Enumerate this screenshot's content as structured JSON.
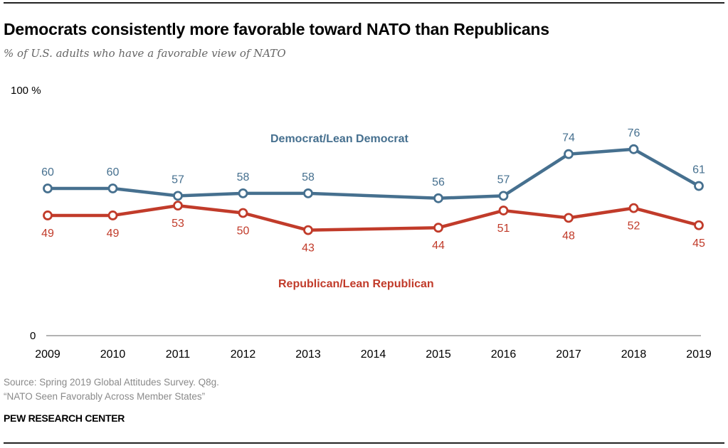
{
  "header": {
    "title": "Democrats consistently more favorable toward NATO than Republicans",
    "subtitle": "% of U.S. adults who have a favorable view of NATO"
  },
  "footer": {
    "source_line1": "Source: Spring 2019 Global Attitudes Survey. Q8g.",
    "source_line2": "“NATO Seen Favorably Across Member States”",
    "brand": "PEW RESEARCH CENTER"
  },
  "chart_data": {
    "type": "line",
    "title": "Democrats consistently more favorable toward NATO than Republicans",
    "subtitle": "% of U.S. adults who have a favorable view of NATO",
    "xlabel": "",
    "ylabel": "",
    "x_ticks": [
      "2009",
      "2010",
      "2011",
      "2012",
      "2013",
      "2014",
      "2015",
      "2016",
      "2017",
      "2018",
      "2019"
    ],
    "y_ticks": [
      {
        "value": 0,
        "label": "0"
      },
      {
        "value": 100,
        "label": "100 %"
      }
    ],
    "ylim": [
      0,
      100
    ],
    "xlim": [
      2009,
      2019
    ],
    "grid": false,
    "legend": "inline labels",
    "series": [
      {
        "name": "Democrat/Lean Democrat",
        "color": "#46708f",
        "x": [
          2009,
          2010,
          2011,
          2012,
          2013,
          2015,
          2016,
          2017,
          2018,
          2019
        ],
        "values": [
          60,
          60,
          57,
          58,
          58,
          56,
          57,
          74,
          76,
          61
        ],
        "label_position": "above"
      },
      {
        "name": "Republican/Lean Republican",
        "color": "#c13b2a",
        "x": [
          2009,
          2010,
          2011,
          2012,
          2013,
          2015,
          2016,
          2017,
          2018,
          2019
        ],
        "values": [
          49,
          49,
          53,
          50,
          43,
          44,
          51,
          48,
          52,
          45
        ],
        "label_position": "below"
      }
    ]
  }
}
